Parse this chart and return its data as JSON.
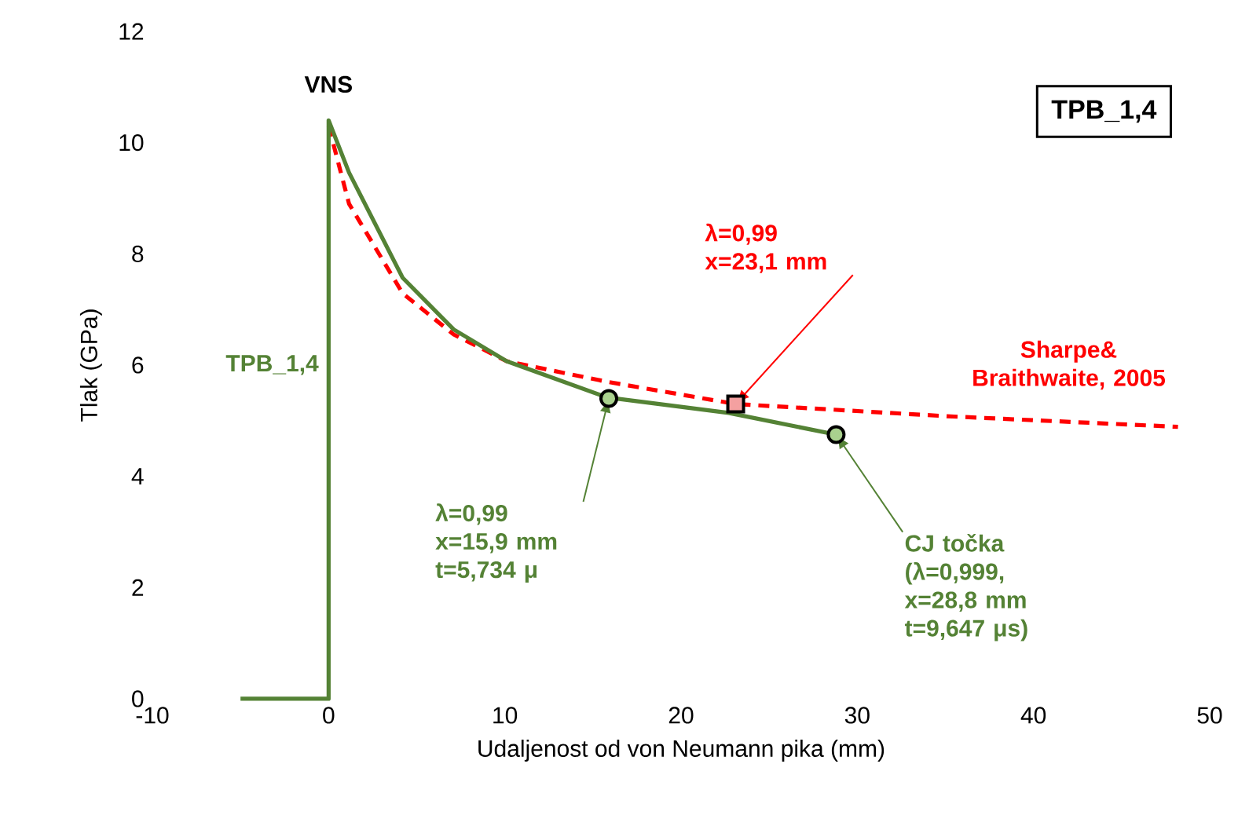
{
  "chart_data": {
    "type": "line",
    "xlabel": "Udaljenost od von Neumann pika (mm)",
    "ylabel": "Tlak (GPa)",
    "xlim": [
      -10,
      50
    ],
    "ylim": [
      0,
      12
    ],
    "xticks": [
      -10,
      0,
      10,
      20,
      30,
      40,
      50
    ],
    "yticks": [
      0,
      2,
      4,
      6,
      8,
      10,
      12
    ],
    "grid": false,
    "series": [
      {
        "name": "Sharpe& Braithwaite, 2005",
        "color": "#ff0000",
        "line_style": "dashed",
        "x": [
          0,
          1.16,
          4.2,
          7.1,
          10.1,
          15.8,
          23.1,
          35.1,
          48.2
        ],
        "values": [
          10.3,
          8.9,
          7.29,
          6.55,
          6.07,
          5.7,
          5.3,
          5.08,
          4.89
        ]
      },
      {
        "name": "TPB_1,4",
        "color": "#548235",
        "line_style": "solid",
        "x": [
          -5,
          0,
          0,
          1.16,
          4.2,
          7.1,
          10.1,
          15.8,
          22.7,
          28.8
        ],
        "values": [
          0,
          0,
          10.4,
          9.46,
          7.57,
          6.64,
          6.07,
          5.42,
          5.14,
          4.75
        ]
      },
      {
        "type": "scatter",
        "marker": "circle",
        "color": "#a9d18e",
        "x": [
          15.9,
          28.8
        ],
        "values": [
          5.4,
          4.75
        ]
      },
      {
        "type": "scatter",
        "marker": "square",
        "color": "#f4a0a0",
        "x": [
          23.1
        ],
        "values": [
          5.3
        ]
      }
    ],
    "annotations": [
      "TPB_1,4",
      {
        "text": "VNS",
        "x": 0,
        "y": 10.4
      },
      {
        "text": "λ=0,99 x=23,1 mm",
        "x": 23.1,
        "y": 5.3
      },
      {
        "text": "λ=0,99 x=15,9 mm t=5,734 μ",
        "x": 15.9,
        "y": 5.4
      },
      {
        "text": "CJ točka (λ=0,999, x=28,8 mm t=9,647 μs)",
        "x": 28.8,
        "y": 4.75
      }
    ]
  }
}
